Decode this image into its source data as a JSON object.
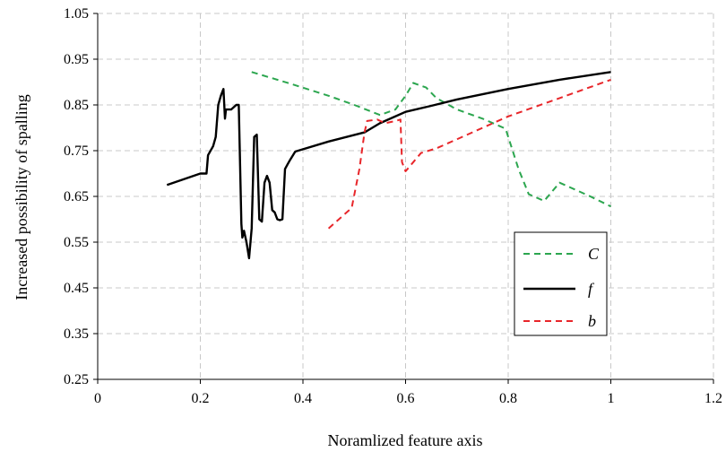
{
  "chart_data": {
    "type": "line",
    "xlabel": "Noramlized feature axis",
    "ylabel": "Increased possibility of spalling",
    "xlim": [
      0,
      1.2
    ],
    "ylim": [
      0.25,
      1.05
    ],
    "xticks": [
      0,
      0.2,
      0.4,
      0.6,
      0.8,
      1,
      1.2
    ],
    "yticks": [
      0.25,
      0.35,
      0.45,
      0.55,
      0.65,
      0.75,
      0.85,
      0.95,
      1.05
    ],
    "xtick_labels": [
      "0",
      "0.2",
      "0.4",
      "0.6",
      "0.8",
      "1",
      "1.2"
    ],
    "ytick_labels": [
      "0.25",
      "0.35",
      "0.45",
      "0.55",
      "0.65",
      "0.75",
      "0.85",
      "0.95",
      "1.05"
    ],
    "grid": true,
    "legend_position": "bottom-right",
    "series": [
      {
        "name": "C",
        "color": "#2ca64f",
        "dash": "dashed",
        "x": [
          0.3,
          0.38,
          0.45,
          0.5,
          0.55,
          0.58,
          0.6,
          0.615,
          0.64,
          0.66,
          0.7,
          0.75,
          0.795,
          0.82,
          0.84,
          0.87,
          0.9,
          0.93,
          0.96,
          1.0
        ],
        "y": [
          0.922,
          0.895,
          0.87,
          0.85,
          0.828,
          0.84,
          0.87,
          0.898,
          0.888,
          0.865,
          0.84,
          0.82,
          0.798,
          0.71,
          0.655,
          0.64,
          0.68,
          0.665,
          0.65,
          0.628
        ]
      },
      {
        "name": "f",
        "color": "#000000",
        "dash": "solid",
        "x": [
          0.135,
          0.2,
          0.212,
          0.215,
          0.225,
          0.23,
          0.235,
          0.24,
          0.245,
          0.248,
          0.25,
          0.26,
          0.27,
          0.275,
          0.28,
          0.282,
          0.285,
          0.29,
          0.295,
          0.3,
          0.305,
          0.31,
          0.315,
          0.32,
          0.325,
          0.33,
          0.335,
          0.34,
          0.345,
          0.35,
          0.355,
          0.36,
          0.365,
          0.37,
          0.375,
          0.385,
          0.45,
          0.52,
          0.55,
          0.6,
          0.65,
          0.7,
          0.8,
          0.9,
          1.0
        ],
        "y": [
          0.675,
          0.7,
          0.7,
          0.74,
          0.76,
          0.78,
          0.85,
          0.87,
          0.885,
          0.82,
          0.84,
          0.84,
          0.85,
          0.85,
          0.59,
          0.56,
          0.575,
          0.55,
          0.515,
          0.58,
          0.78,
          0.785,
          0.6,
          0.595,
          0.68,
          0.695,
          0.68,
          0.62,
          0.615,
          0.6,
          0.598,
          0.6,
          0.71,
          0.72,
          0.73,
          0.748,
          0.77,
          0.79,
          0.81,
          0.835,
          0.848,
          0.862,
          0.885,
          0.905,
          0.922
        ]
      },
      {
        "name": "b",
        "color": "#e8262a",
        "dash": "dashed",
        "x": [
          0.45,
          0.495,
          0.51,
          0.52,
          0.525,
          0.545,
          0.56,
          0.58,
          0.59,
          0.593,
          0.6,
          0.615,
          0.63,
          0.66,
          0.7,
          0.8,
          0.9,
          1.0
        ],
        "y": [
          0.58,
          0.625,
          0.71,
          0.79,
          0.815,
          0.818,
          0.81,
          0.815,
          0.818,
          0.725,
          0.705,
          0.725,
          0.745,
          0.755,
          0.775,
          0.825,
          0.865,
          0.905
        ]
      }
    ]
  }
}
